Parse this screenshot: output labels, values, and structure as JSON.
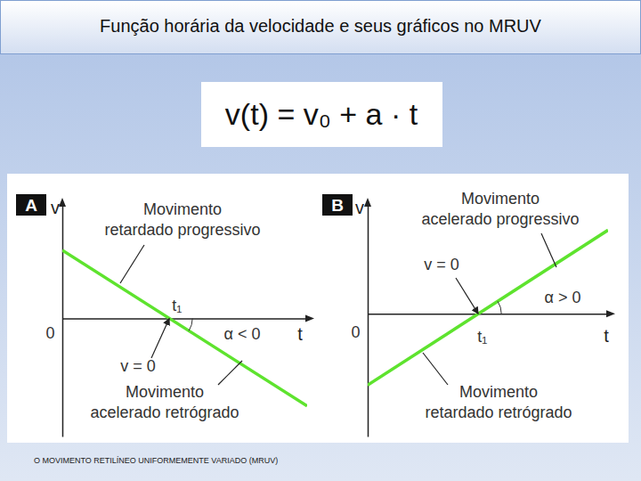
{
  "title": "Função horária da velocidade e seus gráficos no MRUV",
  "formula": "v(t) = v₀ + a · t",
  "footer": "O MOVIMENTO RETILÍNEO UNIFORMEMENTE VARIADO (MRUV)",
  "chart_data": [
    {
      "type": "line",
      "panel": "A",
      "x_label": "t",
      "y_label": "v",
      "x": [
        0,
        10
      ],
      "values": [
        3,
        -3.86
      ],
      "color": "#5ee32e",
      "xlim": [
        0,
        10
      ],
      "ylim": [
        -5.2,
        5
      ],
      "xticks": [
        0,
        {
          "value": 4.37,
          "label": "t₁"
        }
      ],
      "yticks": [],
      "annotations": [
        {
          "text": [
            "Movimento",
            "retardado progressivo"
          ]
        },
        {
          "text": [
            "Movimento",
            "acelerado retrógrado"
          ]
        },
        {
          "text": [
            "v = 0"
          ]
        },
        {
          "text": [
            "α < 0"
          ]
        }
      ]
    },
    {
      "type": "line",
      "panel": "B",
      "x_label": "t",
      "y_label": "v",
      "x": [
        0,
        10
      ],
      "values": [
        -3.14,
        3.69
      ],
      "color": "#5ee32e",
      "xlim": [
        0,
        10
      ],
      "ylim": [
        -5.4,
        4.8
      ],
      "xticks": [
        0,
        {
          "value": 4.6,
          "label": "t₁"
        }
      ],
      "yticks": [],
      "annotations": [
        {
          "text": [
            "Movimento",
            "acelerado progressivo"
          ]
        },
        {
          "text": [
            "Movimento",
            "retardado retrógrado"
          ]
        },
        {
          "text": [
            "v = 0"
          ]
        },
        {
          "text": [
            "α > 0"
          ]
        }
      ]
    }
  ]
}
